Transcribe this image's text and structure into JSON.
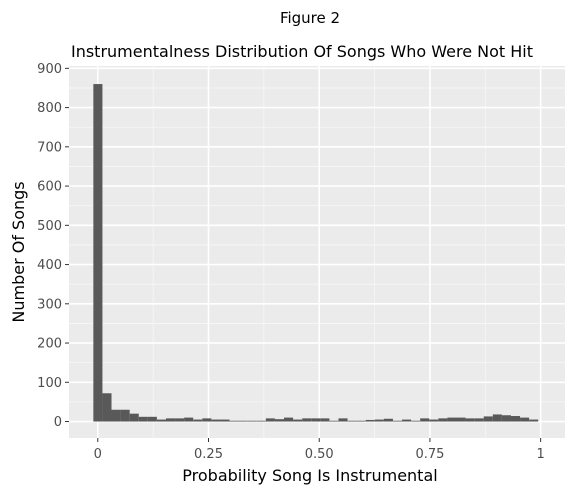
{
  "figure_label": "Figure 2",
  "chart_data": {
    "type": "bar",
    "title": "Instrumentalness Distribution Of Songs Who Were Not Hit",
    "xlabel": "Probability Song Is Instrumental",
    "ylabel": "Number Of Songs",
    "xlim": [
      -0.065,
      1.055
    ],
    "ylim": [
      -42,
      906
    ],
    "grid": true,
    "x_ticks": [
      0,
      0.25,
      0.5,
      0.75,
      1
    ],
    "x_tick_labels": [
      "0",
      "0.25",
      "0.50",
      "0.75",
      "1"
    ],
    "y_ticks": [
      0,
      100,
      200,
      300,
      400,
      500,
      600,
      700,
      800,
      900
    ],
    "y_tick_labels": [
      "0",
      "100",
      "200",
      "300",
      "400",
      "500",
      "600",
      "700",
      "800",
      "900"
    ],
    "bin_width": 0.0205,
    "bin_start": -0.01,
    "values": [
      860,
      72,
      30,
      30,
      20,
      12,
      12,
      5,
      8,
      8,
      10,
      5,
      8,
      5,
      5,
      2,
      2,
      2,
      2,
      8,
      6,
      10,
      5,
      8,
      8,
      8,
      2,
      8,
      2,
      2,
      4,
      5,
      7,
      2,
      5,
      2,
      8,
      5,
      8,
      10,
      10,
      8,
      8,
      13,
      18,
      16,
      14,
      10,
      5
    ]
  }
}
